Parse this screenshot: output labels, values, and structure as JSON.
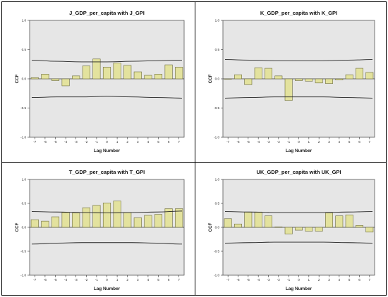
{
  "colors": {
    "panel_bg": "#e6e6e6",
    "bar_fill": "#e3e29e",
    "bar_stroke": "#6b6b3a",
    "line": "#222222"
  },
  "chart_data": [
    {
      "type": "bar",
      "title": "J_GDP_per_capita with J_GPI",
      "xlabel": "Lag Number",
      "ylabel": "CCF",
      "ylim": [
        -1.0,
        1.0
      ],
      "yticks": [
        "1.0",
        "0.5",
        "0.0",
        "-0.5",
        "-1.0"
      ],
      "ytick_values": [
        1.0,
        0.5,
        0.0,
        -0.5,
        -1.0
      ],
      "categories": [
        "-7",
        "-6",
        "-5",
        "-4",
        "-3",
        "-2",
        "-1",
        "0",
        "1",
        "2",
        "3",
        "4",
        "5",
        "6",
        "7"
      ],
      "values": [
        0.02,
        0.08,
        -0.03,
        -0.12,
        0.05,
        0.22,
        0.34,
        0.2,
        0.27,
        0.23,
        0.12,
        0.06,
        0.08,
        0.24,
        0.2
      ],
      "confidence_upper": [
        0.32,
        0.3,
        0.29,
        0.29,
        0.3,
        0.31,
        0.32
      ],
      "confidence_lower": [
        -0.32,
        -0.31,
        -0.31,
        -0.3,
        -0.31,
        -0.32,
        -0.33
      ]
    },
    {
      "type": "bar",
      "title": "K_GDP_per_capita with K_GPI",
      "xlabel": "Lag Number",
      "ylabel": "CCF",
      "ylim": [
        -1.0,
        1.0
      ],
      "yticks": [
        "1.0",
        "0.5",
        "0.0",
        "-0.5",
        "-1.0"
      ],
      "ytick_values": [
        1.0,
        0.5,
        0.0,
        -0.5,
        -1.0
      ],
      "categories": [
        "-7",
        "-6",
        "-5",
        "-4",
        "-3",
        "-2",
        "-1",
        "0",
        "1",
        "2",
        "3",
        "4",
        "5",
        "6",
        "7"
      ],
      "values": [
        0.0,
        0.07,
        -0.1,
        0.19,
        0.18,
        0.05,
        -0.37,
        -0.03,
        -0.04,
        -0.07,
        -0.08,
        -0.02,
        0.07,
        0.18,
        0.11
      ],
      "confidence_upper": [
        0.33,
        0.32,
        0.31,
        0.31,
        0.31,
        0.32,
        0.33
      ],
      "confidence_lower": [
        -0.33,
        -0.32,
        -0.31,
        -0.31,
        -0.31,
        -0.32,
        -0.33
      ]
    },
    {
      "type": "bar",
      "title": "T_GDP_per_capita with T_GPI",
      "xlabel": "Lag Number",
      "ylabel": "CCF",
      "ylim": [
        -1.0,
        1.0
      ],
      "yticks": [
        "1.0",
        "0.5",
        "0.0",
        "-0.5",
        "-1.0"
      ],
      "ytick_values": [
        1.0,
        0.5,
        0.0,
        -0.5,
        -1.0
      ],
      "categories": [
        "-7",
        "-6",
        "-5",
        "-4",
        "-3",
        "-2",
        "-1",
        "0",
        "1",
        "2",
        "3",
        "4",
        "5",
        "6",
        "7"
      ],
      "values": [
        0.16,
        0.13,
        0.22,
        0.31,
        0.3,
        0.41,
        0.46,
        0.51,
        0.55,
        0.31,
        0.2,
        0.25,
        0.27,
        0.39,
        0.39
      ],
      "confidence_upper": [
        0.33,
        0.32,
        0.31,
        0.3,
        0.31,
        0.32,
        0.34
      ],
      "confidence_lower": [
        -0.35,
        -0.33,
        -0.32,
        -0.32,
        -0.32,
        -0.33,
        -0.35
      ]
    },
    {
      "type": "bar",
      "title": "UK_GDP_per_capita with UK_GPI",
      "xlabel": "Lag Number",
      "ylabel": "CCF",
      "ylim": [
        -1.0,
        1.0
      ],
      "yticks": [
        "1.0",
        "0.5",
        "0.0",
        "-0.5",
        "-1.0"
      ],
      "ytick_values": [
        1.0,
        0.5,
        0.0,
        -0.5,
        -1.0
      ],
      "categories": [
        "-7",
        "-6",
        "-5",
        "-4",
        "-3",
        "-2",
        "-1",
        "0",
        "1",
        "2",
        "3",
        "4",
        "5",
        "6",
        "7"
      ],
      "values": [
        0.18,
        0.07,
        0.32,
        0.32,
        0.24,
        0.01,
        -0.14,
        -0.06,
        -0.08,
        -0.08,
        0.3,
        0.24,
        0.26,
        0.04,
        -0.1
      ],
      "confidence_upper": [
        0.33,
        0.32,
        0.31,
        0.31,
        0.31,
        0.32,
        0.33
      ],
      "confidence_lower": [
        -0.33,
        -0.32,
        -0.31,
        -0.31,
        -0.31,
        -0.32,
        -0.33
      ]
    }
  ]
}
